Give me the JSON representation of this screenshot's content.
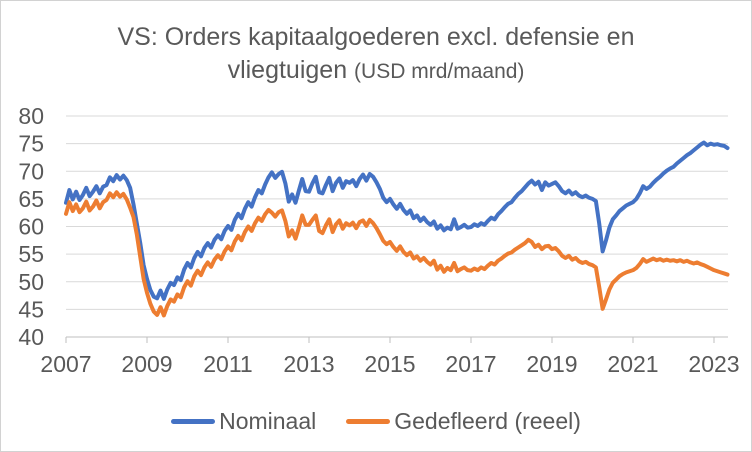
{
  "title": {
    "line1": "VS: Orders kapitaalgoederen excl. defensie en",
    "line2_main": "vliegtuigen",
    "unit": "(USD mrd/maand)"
  },
  "colors": {
    "grid": "#d9d9d9",
    "axis": "#bfbfbf",
    "tick": "#bfbfbf",
    "text": "#595959",
    "frame_border": "#d2d2d2",
    "series_blue": "#4472C4",
    "series_orange": "#ED7D31"
  },
  "chart_data": {
    "type": "line",
    "title": "VS: Orders kapitaalgoederen excl. defensie en vliegtuigen (USD mrd/maand)",
    "xlabel": "",
    "ylabel": "",
    "ylim": [
      40,
      80
    ],
    "y_ticks": [
      80,
      75,
      70,
      65,
      60,
      55,
      50,
      45,
      40
    ],
    "x_tick_labels": [
      "2007",
      "2009",
      "2011",
      "2013",
      "2015",
      "2017",
      "2019",
      "2021",
      "2023"
    ],
    "x_start": "2007-01",
    "x_frequency": "monthly",
    "grid": true,
    "legend_position": "bottom",
    "series": [
      {
        "name": "Nominaal",
        "color": "#4472C4",
        "values": [
          64.3,
          66.6,
          64.9,
          66.3,
          64.8,
          65.7,
          67.0,
          65.5,
          66.3,
          67.3,
          66.0,
          67.2,
          67.5,
          68.9,
          68.2,
          69.3,
          68.5,
          69.2,
          68.4,
          67.0,
          64.0,
          60.5,
          57.0,
          53.0,
          50.5,
          48.5,
          47.3,
          47.0,
          48.4,
          46.9,
          48.6,
          49.8,
          49.4,
          50.8,
          50.3,
          52.2,
          53.4,
          52.6,
          54.3,
          55.4,
          54.6,
          56.1,
          57.0,
          56.2,
          57.6,
          58.4,
          57.7,
          59.2,
          60.1,
          59.4,
          61.2,
          62.3,
          61.5,
          63.2,
          64.4,
          63.6,
          65.3,
          66.6,
          66.0,
          67.6,
          68.9,
          69.8,
          68.8,
          69.5,
          69.9,
          67.8,
          64.5,
          65.8,
          64.3,
          66.5,
          68.6,
          66.4,
          66.3,
          67.8,
          69.0,
          66.2,
          66.0,
          67.5,
          68.8,
          66.4,
          67.9,
          68.7,
          67.0,
          68.2,
          67.9,
          68.4,
          67.3,
          68.6,
          69.4,
          68.3,
          69.5,
          69.0,
          68.0,
          66.8,
          65.2,
          64.4,
          65.0,
          64.0,
          63.2,
          64.1,
          63.0,
          62.3,
          62.9,
          61.5,
          62.0,
          61.0,
          61.6,
          60.8,
          60.3,
          60.9,
          59.6,
          60.2,
          59.3,
          59.8,
          59.5,
          61.3,
          59.6,
          59.9,
          60.3,
          59.8,
          59.9,
          60.4,
          60.1,
          60.6,
          60.3,
          61.0,
          61.6,
          61.3,
          62.2,
          62.8,
          63.5,
          64.1,
          64.4,
          65.2,
          65.9,
          66.4,
          67.1,
          67.8,
          68.3,
          67.6,
          68.1,
          66.6,
          68.0,
          67.4,
          67.7,
          68.0,
          67.3,
          66.4,
          66.0,
          66.5,
          65.8,
          66.2,
          65.6,
          65.3,
          65.6,
          65.2,
          65.0,
          64.6,
          60.5,
          55.5,
          57.5,
          59.8,
          61.3,
          62.0,
          62.8,
          63.3,
          63.8,
          64.1,
          64.4,
          65.0,
          66.0,
          67.3,
          66.8,
          67.2,
          67.9,
          68.5,
          69.0,
          69.6,
          70.1,
          70.5,
          70.8,
          71.4,
          71.9,
          72.4,
          72.9,
          73.3,
          73.8,
          74.3,
          74.8,
          75.2,
          74.7,
          75.0,
          74.8,
          74.9,
          74.7,
          74.6,
          74.2
        ]
      },
      {
        "name": "Gedefleerd (reeel)",
        "color": "#ED7D31",
        "values": [
          62.3,
          64.4,
          62.8,
          64.0,
          62.6,
          63.3,
          64.5,
          62.9,
          63.6,
          64.7,
          63.3,
          64.4,
          64.8,
          66.0,
          65.3,
          66.2,
          65.4,
          65.9,
          64.9,
          63.4,
          61.7,
          58.5,
          54.5,
          50.5,
          48.0,
          46.0,
          44.6,
          44.0,
          45.4,
          43.9,
          45.6,
          46.8,
          46.4,
          47.7,
          47.2,
          49.0,
          50.1,
          49.3,
          51.0,
          52.0,
          51.2,
          52.6,
          53.5,
          52.7,
          54.0,
          54.8,
          54.1,
          55.5,
          56.4,
          55.7,
          57.3,
          58.3,
          57.5,
          59.0,
          60.0,
          59.2,
          60.6,
          61.6,
          61.0,
          62.2,
          63.0,
          62.5,
          61.8,
          62.6,
          62.9,
          61.0,
          58.2,
          59.3,
          57.8,
          59.8,
          62.0,
          60.3,
          60.3,
          61.2,
          62.0,
          59.2,
          58.8,
          60.2,
          61.3,
          59.0,
          60.4,
          61.1,
          59.6,
          60.6,
          60.2,
          60.7,
          59.7,
          60.8,
          61.1,
          60.1,
          61.2,
          60.6,
          59.7,
          58.6,
          57.4,
          56.8,
          57.2,
          56.3,
          55.6,
          56.4,
          55.4,
          54.8,
          55.3,
          54.2,
          54.6,
          53.8,
          54.3,
          53.6,
          53.1,
          53.8,
          52.2,
          52.9,
          51.8,
          52.5,
          52.1,
          53.4,
          51.9,
          52.3,
          52.6,
          52.1,
          52.0,
          52.4,
          52.1,
          52.6,
          52.3,
          52.9,
          53.4,
          53.1,
          53.8,
          54.2,
          54.7,
          55.1,
          55.3,
          55.8,
          56.2,
          56.6,
          57.0,
          57.6,
          57.2,
          56.3,
          56.7,
          55.9,
          56.4,
          56.5,
          55.9,
          56.1,
          55.5,
          54.7,
          54.3,
          54.7,
          54.0,
          54.3,
          53.7,
          53.4,
          53.6,
          53.2,
          53.0,
          52.6,
          49.0,
          45.1,
          46.8,
          48.6,
          49.8,
          50.4,
          51.0,
          51.4,
          51.7,
          51.9,
          52.1,
          52.5,
          53.2,
          54.1,
          53.6,
          53.9,
          54.2,
          53.9,
          54.1,
          53.8,
          54.0,
          53.8,
          53.9,
          53.7,
          53.9,
          53.6,
          53.8,
          53.5,
          53.3,
          53.5,
          53.2,
          53.0,
          52.7,
          52.4,
          52.1,
          51.9,
          51.7,
          51.5,
          51.3
        ]
      }
    ]
  }
}
